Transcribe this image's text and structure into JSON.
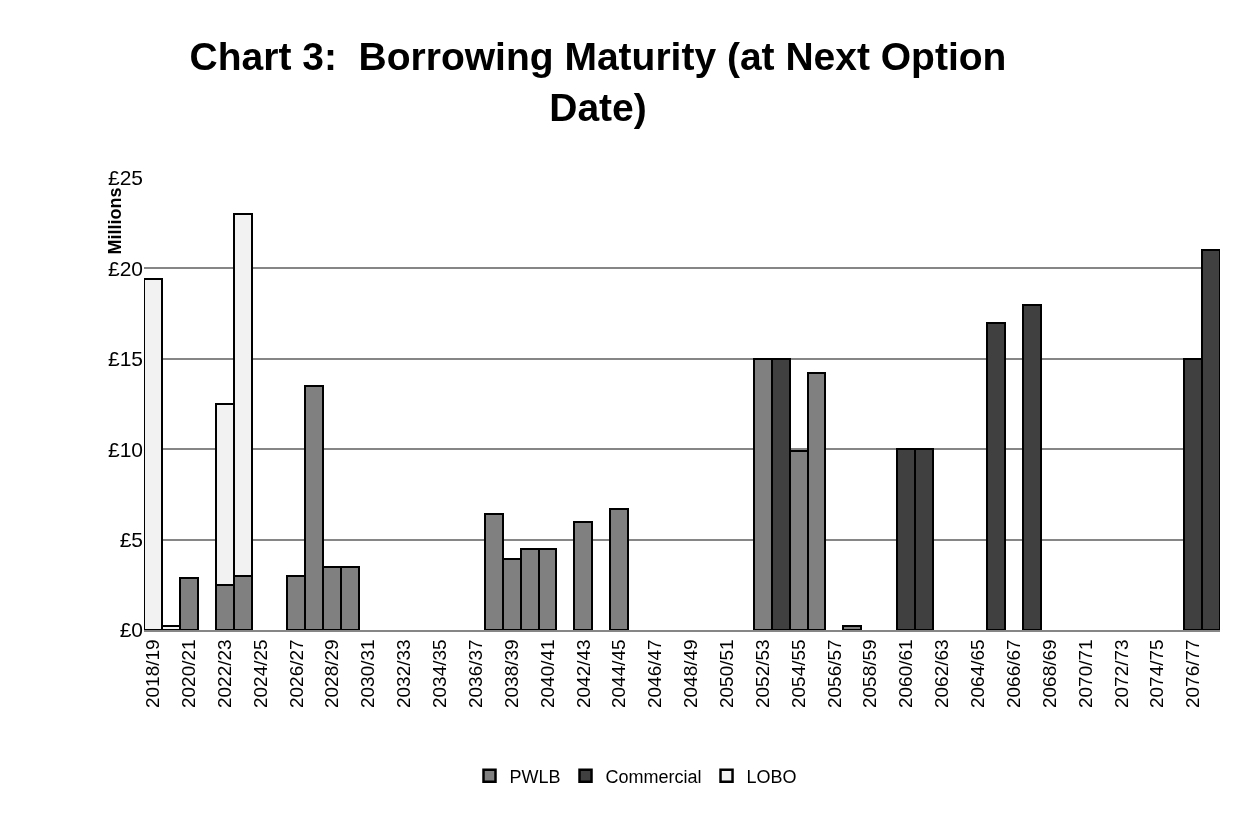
{
  "chart_data": {
    "type": "bar",
    "title": "Chart 3:  Borrowing Maturity (at Next Option Date)",
    "ylabel": "Millions",
    "categories": [
      "2018/19",
      null,
      "2020/21",
      null,
      "2022/23",
      null,
      "2024/25",
      null,
      "2026/27",
      null,
      "2028/29",
      null,
      "2030/31",
      null,
      "2032/33",
      null,
      "2034/35",
      null,
      "2036/37",
      null,
      "2038/39",
      null,
      "2040/41",
      null,
      "2042/43",
      null,
      "2044/45",
      null,
      "2046/47",
      null,
      "2048/49",
      null,
      "2050/51",
      null,
      "2052/53",
      null,
      "2054/55",
      null,
      "2056/57",
      null,
      "2058/59",
      null,
      "2060/61",
      null,
      "2062/63",
      null,
      "2064/65",
      null,
      "2066/67",
      null,
      "2068/69",
      null,
      "2070/71",
      null,
      "2072/73",
      null,
      "2074/75",
      null,
      "2076/77",
      null
    ],
    "series": [
      {
        "name": "PWLB",
        "color": "#808080",
        "values": [
          null,
          null,
          2.9,
          null,
          2.5,
          3.0,
          null,
          null,
          3.0,
          13.5,
          3.5,
          3.5,
          null,
          null,
          null,
          null,
          null,
          null,
          null,
          6.4,
          3.9,
          4.5,
          4.5,
          null,
          6.0,
          null,
          6.7,
          null,
          null,
          null,
          null,
          null,
          null,
          null,
          15.0,
          null,
          9.9,
          14.2,
          null,
          0.2,
          null,
          null,
          null,
          null,
          null,
          null,
          null,
          null,
          null,
          null,
          null,
          null,
          null,
          null,
          null,
          null,
          null,
          null,
          null,
          null
        ]
      },
      {
        "name": "Commercial",
        "color": "#404040",
        "values": [
          null,
          null,
          null,
          null,
          null,
          null,
          null,
          null,
          null,
          null,
          null,
          null,
          null,
          null,
          null,
          null,
          null,
          null,
          null,
          null,
          null,
          null,
          null,
          null,
          null,
          null,
          null,
          null,
          null,
          null,
          null,
          null,
          null,
          null,
          null,
          15.0,
          null,
          null,
          null,
          null,
          null,
          null,
          10.0,
          10.0,
          null,
          null,
          null,
          17.0,
          null,
          18.0,
          null,
          null,
          null,
          null,
          null,
          null,
          null,
          null,
          15.0,
          21.0
        ]
      },
      {
        "name": "LOBO",
        "color": "#f2f2f2",
        "values": [
          19.4,
          0.2,
          null,
          null,
          10.0,
          20.0,
          null,
          null,
          null,
          null,
          null,
          null,
          null,
          null,
          null,
          null,
          null,
          null,
          null,
          null,
          null,
          null,
          null,
          null,
          null,
          null,
          null,
          null,
          null,
          null,
          null,
          null,
          null,
          null,
          null,
          null,
          null,
          null,
          null,
          null,
          null,
          null,
          null,
          null,
          null,
          null,
          null,
          null,
          null,
          null,
          null,
          null,
          null,
          null,
          null,
          null,
          null,
          null,
          null,
          null
        ]
      }
    ],
    "stacked": true,
    "ylim": [
      0,
      25
    ],
    "yticks": [
      {
        "value": 0,
        "label": "£0"
      },
      {
        "value": 5,
        "label": "£5"
      },
      {
        "value": 10,
        "label": "£10"
      },
      {
        "value": 15,
        "label": "£15"
      },
      {
        "value": 20,
        "label": "£20"
      },
      {
        "value": 25,
        "label": "£25"
      }
    ],
    "grid": "y",
    "legend": "bottom"
  }
}
